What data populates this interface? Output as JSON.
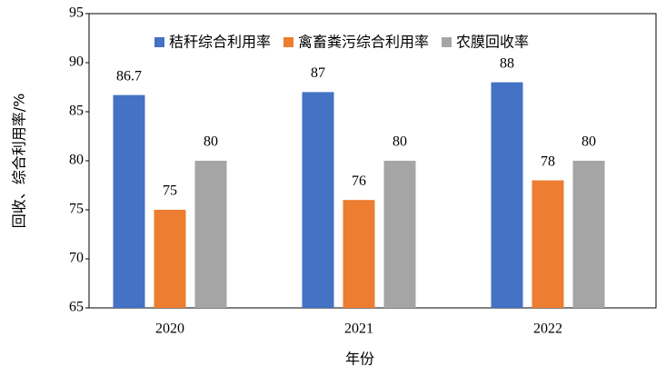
{
  "chart_data": {
    "type": "bar",
    "categories": [
      "2020",
      "2021",
      "2022"
    ],
    "series": [
      {
        "name": "秸秆综合利用率",
        "color": "#4472c4",
        "values": [
          86.7,
          87,
          88
        ]
      },
      {
        "name": "禽畜粪污综合利用率",
        "color": "#ed7d31",
        "values": [
          75,
          76,
          78
        ]
      },
      {
        "name": "农膜回收率",
        "color": "#a5a5a5",
        "values": [
          80,
          80,
          80
        ]
      }
    ],
    "ylim": [
      65,
      95
    ],
    "yticks": [
      65,
      70,
      75,
      80,
      85,
      90,
      95
    ],
    "xlabel": "年份",
    "ylabel": "回收、综合利用率/%"
  }
}
